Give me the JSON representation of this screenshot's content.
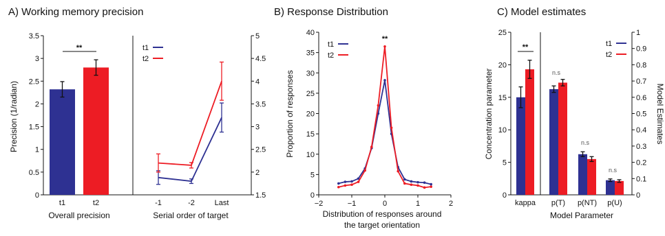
{
  "colors": {
    "t1": "#2e3192",
    "t2": "#ed1c24",
    "axis": "#111111"
  },
  "chart_data": [
    {
      "id": "A-left",
      "type": "bar",
      "title": "A) Working memory precision",
      "ylabel": "Precision (1/radian)",
      "xlabel": "Overall precision",
      "ylim": [
        0,
        3.5
      ],
      "yticks": [
        "0",
        "0.5",
        "1",
        "1.5",
        "2",
        "2.5",
        "3",
        "3.5"
      ],
      "categories": [
        "t1",
        "t2"
      ],
      "values": [
        2.32,
        2.8
      ],
      "errors": [
        0.17,
        0.17
      ],
      "significance": "**"
    },
    {
      "id": "A-right",
      "type": "line",
      "xlabel": "Serial order of target",
      "categories": [
        "-1",
        "-2",
        "Last"
      ],
      "ylim": [
        1.5,
        5
      ],
      "yticks": [
        "1.5",
        "2",
        "2.5",
        "3",
        "3.5",
        "4",
        "4.5",
        "5"
      ],
      "legend": [
        "t1",
        "t2"
      ],
      "series": [
        {
          "name": "t1",
          "values": [
            1.88,
            1.8,
            3.2
          ],
          "errors": [
            0.15,
            0.05,
            0.32
          ]
        },
        {
          "name": "t2",
          "values": [
            2.2,
            2.15,
            4.0
          ],
          "errors": [
            0.2,
            0.06,
            0.42
          ]
        }
      ]
    },
    {
      "id": "B",
      "type": "line",
      "title": "B) Response Distribution",
      "ylabel": "Proportion of responses",
      "xlabel": "Distribution of responses around",
      "xlabel2": "the target orientation",
      "xlim": [
        -2,
        2
      ],
      "ylim": [
        0,
        40
      ],
      "xticks": [
        "−2",
        "−1",
        "0",
        "1",
        "2"
      ],
      "yticks": [
        "0",
        "5",
        "10",
        "15",
        "20",
        "25",
        "30",
        "35",
        "40"
      ],
      "legend": [
        "t1",
        "t2"
      ],
      "significance": "**",
      "x": [
        -1.4,
        -1.2,
        -1.0,
        -0.8,
        -0.6,
        -0.4,
        -0.2,
        0,
        0.2,
        0.4,
        0.6,
        0.8,
        1.0,
        1.2,
        1.4
      ],
      "series": [
        {
          "name": "t1",
          "values": [
            2.8,
            3.2,
            3.3,
            4.0,
            6.5,
            11.5,
            20.0,
            28.2,
            15.0,
            6.8,
            3.8,
            3.3,
            3.1,
            3.0,
            2.6
          ]
        },
        {
          "name": "t2",
          "values": [
            1.9,
            2.3,
            2.5,
            3.2,
            6.0,
            11.8,
            22.0,
            36.5,
            16.5,
            5.8,
            2.8,
            2.5,
            2.3,
            1.8,
            2.0
          ]
        }
      ]
    },
    {
      "id": "C",
      "type": "bar",
      "title": "C) Model estimates",
      "ylabel": "Concentration parameter",
      "ylabel_right": "Model Estimates",
      "xlabel": "Model Parameter",
      "ylim": [
        0,
        25
      ],
      "ylim_right": [
        0,
        1
      ],
      "yticks": [
        "0",
        "5",
        "10",
        "15",
        "20",
        "25"
      ],
      "yticks_right": [
        "0",
        "0.1",
        "0.2",
        "0.3",
        "0.4",
        "0.5",
        "0.6",
        "0.7",
        "0.8",
        "0.9",
        "1"
      ],
      "categories": [
        "kappa",
        "p(T)",
        "p(NT)",
        "p(U)"
      ],
      "legend": [
        "t1",
        "t2"
      ],
      "significance": [
        "**",
        "n.s",
        "n.s",
        "n.s"
      ],
      "series": [
        {
          "name": "t1",
          "values": [
            15.0,
            0.65,
            0.25,
            0.09
          ],
          "errors": [
            1.6,
            0.02,
            0.015,
            0.008
          ]
        },
        {
          "name": "t2",
          "values": [
            19.3,
            0.69,
            0.22,
            0.085
          ],
          "errors": [
            1.4,
            0.02,
            0.015,
            0.008
          ]
        }
      ]
    }
  ]
}
